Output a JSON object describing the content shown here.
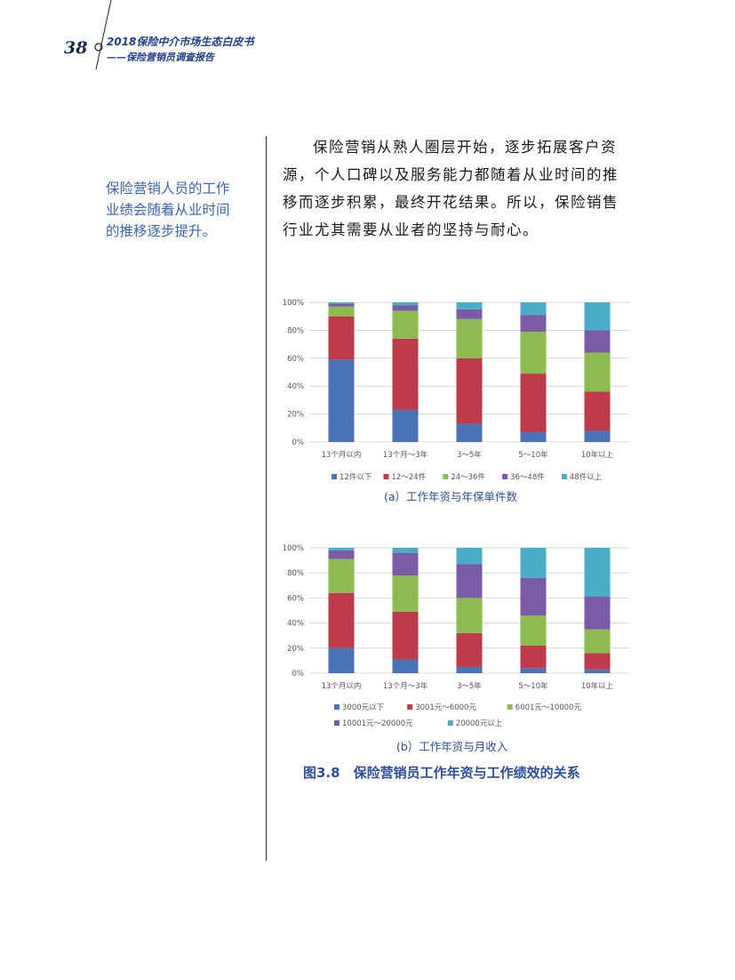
{
  "header": {
    "page_number": "38",
    "title": "2018保险中介市场生态白皮书",
    "subtitle": "——保险营销员调查报告"
  },
  "side_note": {
    "lines": [
      "保险营销人员的工作",
      "业绩会随着从业时间",
      "的推移逐步提升。"
    ]
  },
  "body": {
    "lines": [
      "保险营销从熟人圈层开始，逐步拓展客户资",
      "源，个人口碑以及服务能力都随着从业时间的推",
      "移而逐步积累，最终开花结果。所以，保险销售",
      "行业尤其需要从业者的坚持与耐心。"
    ]
  },
  "figure_title": "图3.8　保险营销员工作年资与工作绩效的关系",
  "chart_data": [
    {
      "type": "bar",
      "stacked": true,
      "caption": "(a）工作年资与年保单件数",
      "categories": [
        "13个月以内",
        "13个月～3年",
        "3～5年",
        "5～10年",
        "10年以上"
      ],
      "ylim": [
        0,
        100
      ],
      "yticks": [
        "0%",
        "20%",
        "40%",
        "60%",
        "80%",
        "100%"
      ],
      "grid": true,
      "legend_position": "bottom",
      "series": [
        {
          "name": "12件以下",
          "color": "#4a74b8",
          "values": [
            59,
            23,
            13,
            7,
            8
          ]
        },
        {
          "name": "12～24件",
          "color": "#bf3a4a",
          "values": [
            31,
            51,
            47,
            42,
            28
          ]
        },
        {
          "name": "24～36件",
          "color": "#8dbb52",
          "values": [
            7,
            20,
            28,
            30,
            28
          ]
        },
        {
          "name": "36～48件",
          "color": "#7a5ca6",
          "values": [
            2,
            4,
            7,
            12,
            16
          ]
        },
        {
          "name": "48件以上",
          "color": "#4bacc6",
          "values": [
            1,
            2,
            5,
            9,
            20
          ]
        }
      ]
    },
    {
      "type": "bar",
      "stacked": true,
      "caption": "(b）工作年资与月收入",
      "categories": [
        "13个月以内",
        "13个月～3年",
        "3～5年",
        "5～10年",
        "10年以上"
      ],
      "ylim": [
        0,
        100
      ],
      "yticks": [
        "0%",
        "20%",
        "40%",
        "60%",
        "80%",
        "100%"
      ],
      "grid": true,
      "legend_position": "bottom",
      "series": [
        {
          "name": "3000元以下",
          "color": "#4a74b8",
          "values": [
            20,
            11,
            5,
            4,
            3
          ]
        },
        {
          "name": "3001元～6000元",
          "color": "#bf3a4a",
          "values": [
            44,
            38,
            27,
            18,
            13
          ]
        },
        {
          "name": "6001元～10000元",
          "color": "#8dbb52",
          "values": [
            27,
            29,
            28,
            24,
            19
          ]
        },
        {
          "name": "10001元～20000元",
          "color": "#7a5ca6",
          "values": [
            7,
            18,
            27,
            30,
            26
          ]
        },
        {
          "name": "20000元以上",
          "color": "#4bacc6",
          "values": [
            2,
            4,
            13,
            24,
            39
          ]
        }
      ]
    }
  ]
}
